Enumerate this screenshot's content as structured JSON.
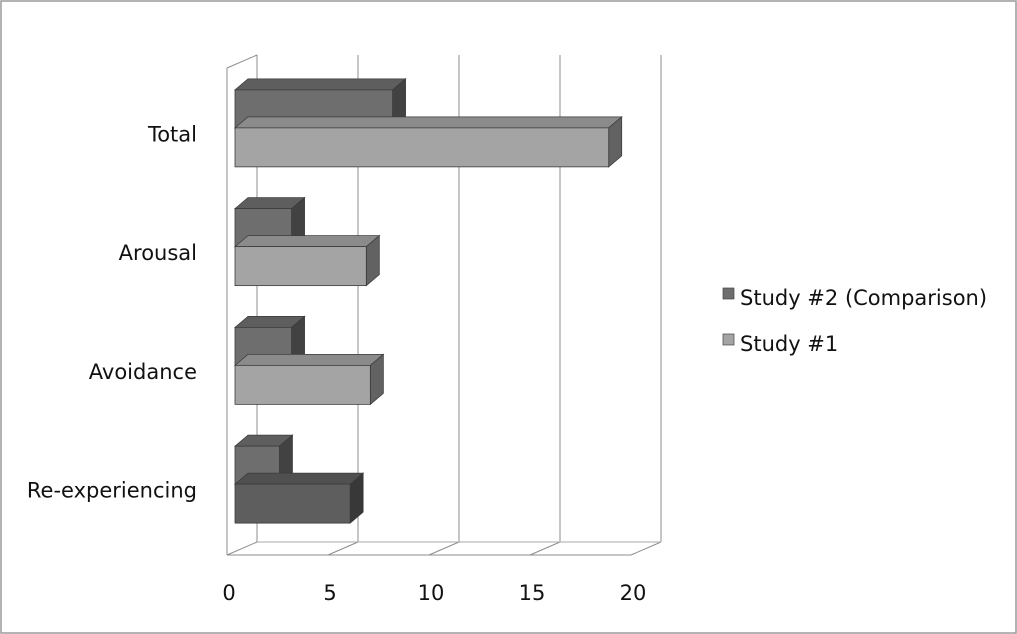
{
  "chart_data": {
    "type": "bar",
    "orientation": "horizontal",
    "style": "3d-clustered",
    "categories": [
      "Re-experiencing",
      "Avoidance",
      "Arousal",
      "Total"
    ],
    "series": [
      {
        "name": "Study #2 (Comparison)",
        "values": [
          2.2,
          2.8,
          2.8,
          7.8
        ]
      },
      {
        "name": "Study #1",
        "values": [
          5.7,
          6.7,
          6.5,
          18.5
        ]
      }
    ],
    "xlim": [
      0,
      20
    ],
    "xticks": [
      "0",
      "5",
      "10",
      "15",
      "20"
    ],
    "grid": true,
    "legend_position": "right",
    "colors": {
      "Study #2 (Comparison)": "#6e6e6e",
      "Study #1": "#a4a4a4",
      "Study #1 re-experiencing": "#5e5e5e"
    }
  }
}
